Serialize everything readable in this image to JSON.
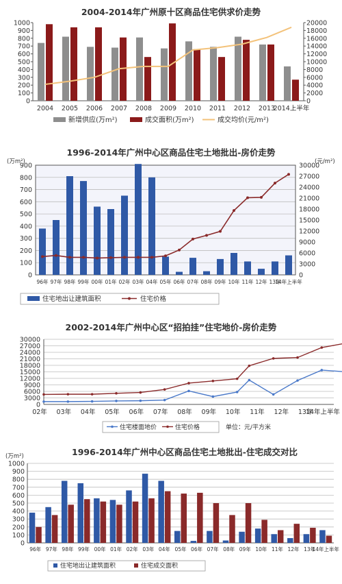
{
  "colors": {
    "gray": "#8e8e8e",
    "darkred": "#8b1a1a",
    "orange": "#f3c27a",
    "blue": "#2f59a6",
    "red": "#8a2a2a",
    "lightblue": "#4a79c9",
    "grid": "#bdbdbd",
    "plotbg": "#f3f4fb"
  },
  "chart_data": [
    {
      "type": "bar",
      "title": "2004-2014年广州原十区商品住宅供求价走势",
      "categories": [
        "2004",
        "2005",
        "2006",
        "2007",
        "2008",
        "2009",
        "2010",
        "2011",
        "2012",
        "2013",
        "2014上半年"
      ],
      "ylim": [
        0,
        1000
      ],
      "yticks": [
        0,
        100,
        200,
        300,
        400,
        500,
        600,
        700,
        800,
        900,
        1000
      ],
      "y2lim": [
        0,
        20000
      ],
      "y2ticks": [
        0,
        2000,
        4000,
        6000,
        8000,
        10000,
        12000,
        14000,
        16000,
        18000,
        20000
      ],
      "series": [
        {
          "name": "新增供应(万m²)",
          "kind": "bar",
          "axis": "left",
          "color": "#8e8e8e",
          "values": [
            740,
            820,
            690,
            680,
            810,
            670,
            760,
            690,
            820,
            720,
            440
          ]
        },
        {
          "name": "成交面积(万m²)",
          "kind": "bar",
          "axis": "left",
          "color": "#8b1a1a",
          "values": [
            980,
            940,
            940,
            810,
            560,
            990,
            660,
            560,
            780,
            720,
            270
          ]
        },
        {
          "name": "成交均价(元/m²)",
          "kind": "line",
          "axis": "right",
          "color": "#f3c27a",
          "values": [
            4200,
            5000,
            6000,
            8200,
            8800,
            8800,
            13000,
            13600,
            14500,
            16200,
            18800
          ]
        }
      ],
      "legend": "bottom"
    },
    {
      "type": "bar",
      "title": "1996-2014年广州中心区商品住宅土地批出-房价走势",
      "ylabel": "(万m²)",
      "y2label": "(元/m²)",
      "categories": [
        "96年",
        "97年",
        "98年",
        "99年",
        "00年",
        "01年",
        "02年",
        "03年",
        "04年",
        "05年",
        "06年",
        "07年",
        "08年",
        "09年",
        "10年",
        "11年",
        "12年",
        "13年",
        "14年上半年"
      ],
      "ylim": [
        0,
        900
      ],
      "yticks": [
        0,
        100,
        200,
        300,
        400,
        500,
        600,
        700,
        800,
        900
      ],
      "y2lim": [
        0,
        30000
      ],
      "y2ticks": [
        0,
        3000,
        6000,
        9000,
        12000,
        15000,
        18000,
        21000,
        24000,
        27000,
        30000
      ],
      "series": [
        {
          "name": "住宅地出让建筑面积",
          "kind": "bar",
          "axis": "left",
          "color": "#2f59a6",
          "values": [
            380,
            450,
            810,
            770,
            560,
            540,
            650,
            910,
            800,
            150,
            25,
            140,
            30,
            130,
            180,
            110,
            50,
            110,
            160
          ]
        },
        {
          "name": "住宅价格",
          "kind": "line",
          "axis": "right",
          "color": "#8a2a2a",
          "values": [
            5000,
            5300,
            4800,
            4800,
            4600,
            4700,
            4800,
            4800,
            4800,
            5200,
            6800,
            9800,
            10800,
            11900,
            17600,
            21100,
            21200,
            25100,
            27500
          ]
        }
      ],
      "legend": "bottom",
      "grid": true
    },
    {
      "type": "line",
      "title": "2002-2014年广州中心区“招拍挂”住宅地价-房价走势",
      "categories": [
        "02年",
        "03年",
        "04年",
        "05年",
        "06年",
        "07年",
        "08年",
        "09年",
        "10年",
        "11年",
        "12年",
        "13年",
        "14年上半年"
      ],
      "ylim": [
        0,
        30000
      ],
      "yticks": [
        0,
        3000,
        6000,
        9000,
        12000,
        15000,
        18000,
        21000,
        24000,
        27000,
        30000
      ],
      "series": [
        {
          "name": "住宅楼面地价",
          "color": "#4a79c9",
          "x": [
            0,
            1,
            2,
            3,
            4,
            5,
            6,
            7,
            8,
            8.5,
            9.5,
            10.5,
            11.5,
            12.5
          ],
          "values": [
            1300,
            1300,
            1400,
            1600,
            1700,
            2000,
            6200,
            3600,
            5700,
            11200,
            4600,
            11000,
            15800,
            15000
          ]
        },
        {
          "name": "住宅价格",
          "color": "#8a2a2a",
          "x": [
            0,
            1,
            2,
            3,
            4,
            5,
            6,
            7,
            8,
            8.5,
            9.5,
            10.5,
            11.5,
            12.5
          ],
          "values": [
            4600,
            4700,
            4700,
            5100,
            5500,
            6900,
            9800,
            10800,
            11800,
            17800,
            21200,
            21600,
            26200,
            28200
          ]
        }
      ],
      "unit": "单位：元/平方米",
      "legend": "bottom",
      "grid": true
    },
    {
      "type": "bar",
      "title": "1996-2014年广州中心区商品住宅土地批出-住宅成交对比",
      "ylabel": "(万m²)",
      "categories": [
        "96年",
        "97年",
        "98年",
        "99年",
        "00年",
        "01年",
        "02年",
        "03年",
        "04年",
        "05年",
        "06年",
        "07年",
        "08年",
        "09年",
        "10年",
        "11年",
        "12年",
        "13年",
        "14年上半年"
      ],
      "ylim": [
        0,
        1000
      ],
      "yticks": [
        0,
        100,
        200,
        300,
        400,
        500,
        600,
        700,
        800,
        900,
        1000
      ],
      "series": [
        {
          "name": "住宅地出让建筑面积",
          "color": "#2f59a6",
          "values": [
            380,
            450,
            780,
            750,
            560,
            540,
            660,
            870,
            780,
            150,
            25,
            150,
            30,
            140,
            180,
            110,
            60,
            110,
            160
          ]
        },
        {
          "name": "住宅成交面积",
          "color": "#8a2a2a",
          "values": [
            200,
            350,
            480,
            550,
            520,
            480,
            520,
            560,
            650,
            620,
            630,
            500,
            350,
            500,
            290,
            160,
            240,
            190,
            90
          ]
        }
      ],
      "legend": "bottom",
      "grid": true
    }
  ]
}
